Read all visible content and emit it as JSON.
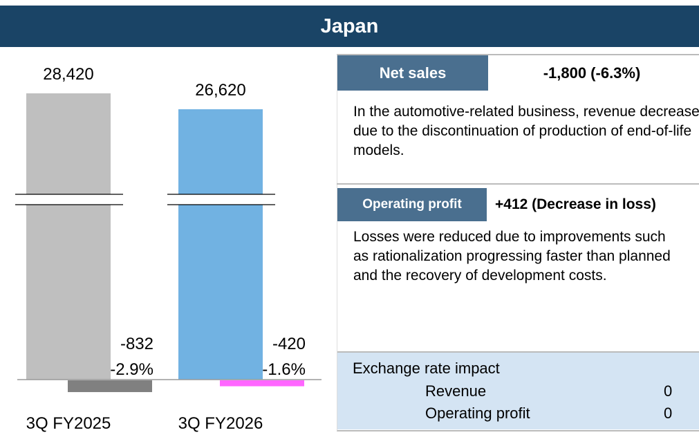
{
  "header": {
    "title": "Japan"
  },
  "chart_data": {
    "type": "bar",
    "categories": [
      "3Q FY2025",
      "3Q FY2026"
    ],
    "series": [
      {
        "colors": [
          "#bfbfbf",
          "#71b2e2"
        ],
        "values": [
          28420,
          26620
        ],
        "value_labels": [
          "28,420",
          "26,620"
        ]
      },
      {
        "colors": [
          "#808080",
          "#ff66ff"
        ],
        "values": [
          -832,
          -420
        ]
      }
    ],
    "margin_labels": [
      "-2.9%",
      "-1.6%"
    ],
    "axis_break": true
  },
  "panel": {
    "net_sales": {
      "label": "Net sales",
      "change": "-1,800 (-6.3%)",
      "text": "In the automotive-related business, revenue decreased due to the discontinuation of production of end-of-life models."
    },
    "operating_profit": {
      "label": "Operating profit",
      "change": "+412 (Decrease in loss)",
      "text": "Losses were reduced due to improvements such as rationalization progressing faster than planned and the recovery of development costs."
    },
    "exchange": {
      "title": "Exchange rate impact",
      "rows": [
        [
          "Revenue",
          "0"
        ],
        [
          "Operating profit",
          "0"
        ]
      ]
    }
  }
}
